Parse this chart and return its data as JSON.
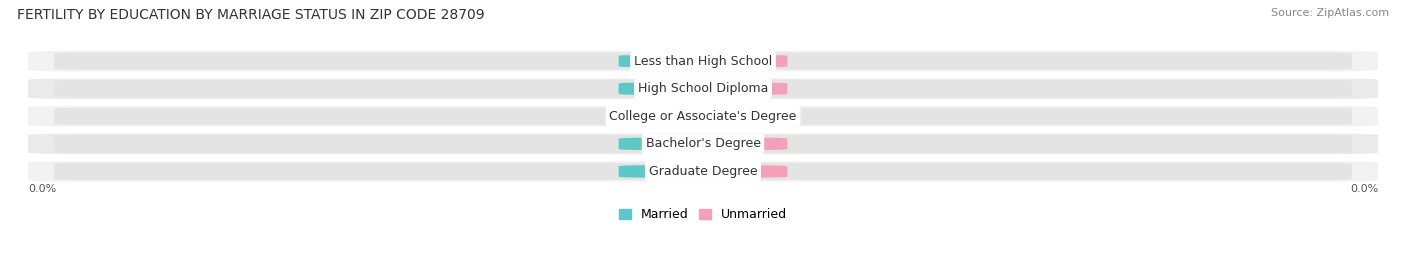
{
  "title": "FERTILITY BY EDUCATION BY MARRIAGE STATUS IN ZIP CODE 28709",
  "source": "Source: ZipAtlas.com",
  "categories": [
    "Less than High School",
    "High School Diploma",
    "College or Associate's Degree",
    "Bachelor's Degree",
    "Graduate Degree"
  ],
  "married_values": [
    0.0,
    0.0,
    0.0,
    0.0,
    0.0
  ],
  "unmarried_values": [
    0.0,
    0.0,
    0.0,
    0.0,
    0.0
  ],
  "married_color": "#5DC8C8",
  "unmarried_color": "#F4A0B8",
  "bar_bg_color": "#E4E4E4",
  "row_bg_even": "#F2F2F2",
  "row_bg_odd": "#EAEAEA",
  "title_fontsize": 10,
  "source_fontsize": 8,
  "cat_label_fontsize": 9,
  "value_label_fontsize": 8,
  "legend_fontsize": 9,
  "background_color": "#FFFFFF",
  "axis_label_left": "0.0%",
  "axis_label_right": "0.0%"
}
